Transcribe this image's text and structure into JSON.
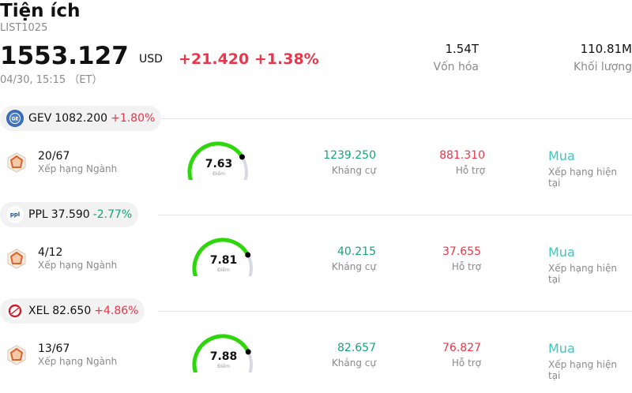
{
  "header": {
    "title": "Tiện ích",
    "code": "LIST1025",
    "price": "1553.127",
    "currency": "USD",
    "change": "+21.420",
    "change_pct": "+1.38%",
    "timestamp": "04/30, 15:15 （ET）",
    "market_cap_value": "1.54T",
    "market_cap_label": "Vốn hóa",
    "volume_value": "110.81M",
    "volume_label": "Khối lượng"
  },
  "colors": {
    "up": "#e8364a",
    "down": "#17a37a",
    "rating": "#3ec6c0",
    "gauge_green": "#2fd60e",
    "gauge_track": "#d9d9e6"
  },
  "stocks": [
    {
      "ticker": "GEV",
      "price": "1082.200",
      "change_pct": "+1.80%",
      "direction": "up",
      "logo_icon": "ge-vernova-logo-icon",
      "rank": "20/67",
      "rank_label": "Xếp hạng Ngành",
      "score": "7.63",
      "score_unit": "Điểm",
      "score_fraction": 0.763,
      "resistance": "1239.250",
      "resistance_label": "Kháng cự",
      "support": "881.310",
      "support_label": "Hỗ trợ",
      "rating": "Mua",
      "rating_label": "Xếp hạng hiện tại"
    },
    {
      "ticker": "PPL",
      "price": "37.590",
      "change_pct": "-2.77%",
      "direction": "down",
      "logo_icon": "ppl-logo-icon",
      "rank": "4/12",
      "rank_label": "Xếp hạng Ngành",
      "score": "7.81",
      "score_unit": "Điểm",
      "score_fraction": 0.781,
      "resistance": "40.215",
      "resistance_label": "Kháng cự",
      "support": "37.655",
      "support_label": "Hỗ trợ",
      "rating": "Mua",
      "rating_label": "Xếp hạng hiện tại"
    },
    {
      "ticker": "XEL",
      "price": "82.650",
      "change_pct": "+4.86%",
      "direction": "up",
      "logo_icon": "xcel-energy-logo-icon",
      "rank": "13/67",
      "rank_label": "Xếp hạng Ngành",
      "score": "7.88",
      "score_unit": "Điểm",
      "score_fraction": 0.788,
      "resistance": "82.657",
      "resistance_label": "Kháng cự",
      "support": "76.827",
      "support_label": "Hỗ trợ",
      "rating": "Mua",
      "rating_label": "Xếp hạng hiện tại"
    }
  ]
}
